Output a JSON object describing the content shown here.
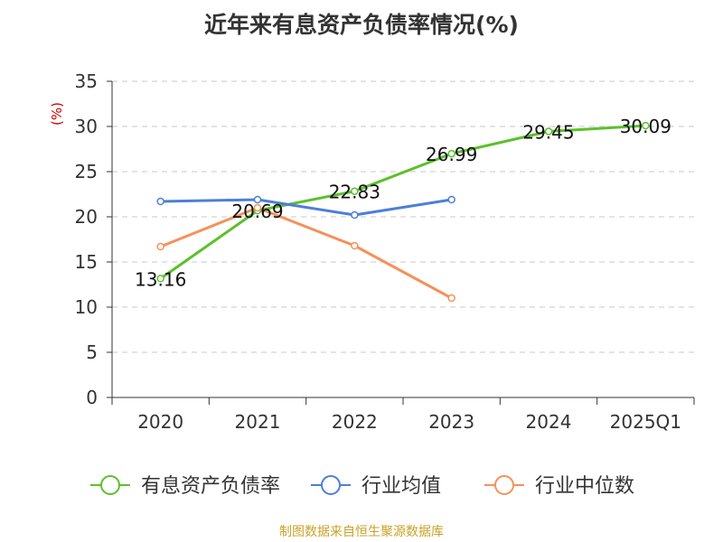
{
  "chart_data": {
    "type": "line",
    "title": "近年来有息资产负债率情况(%)",
    "ylabel": "(%)",
    "categories": [
      "2020",
      "2021",
      "2022",
      "2023",
      "2024",
      "2025Q1"
    ],
    "ylim": [
      0,
      35
    ],
    "yticks": [
      0,
      5,
      10,
      15,
      20,
      25,
      30,
      35
    ],
    "grid": true,
    "legend_position": "bottom",
    "series": [
      {
        "name": "有息资产负债率",
        "color": "#5cc02c",
        "values": [
          13.16,
          20.69,
          22.83,
          26.99,
          29.45,
          30.09
        ],
        "labels": [
          "13.16",
          "20.69",
          "22.83",
          "26.99",
          "29.45",
          "30.09"
        ]
      },
      {
        "name": "行业均值",
        "color": "#4c7fd8",
        "values": [
          21.7,
          21.9,
          20.2,
          21.9,
          null,
          null
        ]
      },
      {
        "name": "行业中位数",
        "color": "#f5915a",
        "values": [
          16.7,
          21.0,
          16.8,
          11.0,
          null,
          null
        ]
      }
    ]
  },
  "source": "制图数据来自恒生聚源数据库"
}
